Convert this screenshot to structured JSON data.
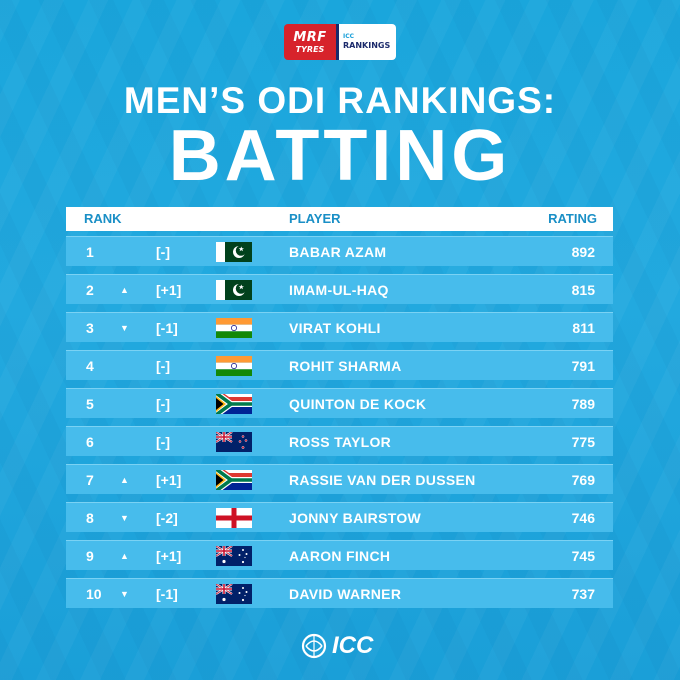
{
  "sponsor": {
    "brand": "MRF",
    "brand_sub": "TYRES",
    "partner_top": "ICC",
    "partner_bottom": "RANKINGS"
  },
  "title_line1": "MEN’S ODI RANKINGS:",
  "title_line2": "BATTING",
  "headers": {
    "rank": "RANK",
    "player": "PLAYER",
    "rating": "RATING"
  },
  "rows": [
    {
      "rank": "1",
      "arrow": "",
      "move": "[-]",
      "flag": "pakistan-flag",
      "player": "BABAR AZAM",
      "rating": "892"
    },
    {
      "rank": "2",
      "arrow": "▲",
      "move": "[+1]",
      "flag": "pakistan-flag",
      "player": "IMAM-UL-HAQ",
      "rating": "815"
    },
    {
      "rank": "3",
      "arrow": "▼",
      "move": "[-1]",
      "flag": "india-flag",
      "player": "VIRAT KOHLI",
      "rating": "811"
    },
    {
      "rank": "4",
      "arrow": "",
      "move": "[-]",
      "flag": "india-flag",
      "player": "ROHIT SHARMA",
      "rating": "791"
    },
    {
      "rank": "5",
      "arrow": "",
      "move": "[-]",
      "flag": "south-africa-flag",
      "player": "QUINTON DE KOCK",
      "rating": "789"
    },
    {
      "rank": "6",
      "arrow": "",
      "move": "[-]",
      "flag": "new-zealand-flag",
      "player": "ROSS TAYLOR",
      "rating": "775"
    },
    {
      "rank": "7",
      "arrow": "▲",
      "move": "[+1]",
      "flag": "south-africa-flag",
      "player": "RASSIE VAN DER DUSSEN",
      "rating": "769"
    },
    {
      "rank": "8",
      "arrow": "▼",
      "move": "[-2]",
      "flag": "england-flag",
      "player": "JONNY BAIRSTOW",
      "rating": "746"
    },
    {
      "rank": "9",
      "arrow": "▲",
      "move": "[+1]",
      "flag": "australia-flag",
      "player": "AARON FINCH",
      "rating": "745"
    },
    {
      "rank": "10",
      "arrow": "▼",
      "move": "[-1]",
      "flag": "australia-flag",
      "player": "DAVID WARNER",
      "rating": "737"
    }
  ],
  "footer": {
    "logo_text": "ICC"
  },
  "colors": {
    "background": "#1ea6dc",
    "row": "#47bcec",
    "header_text": "#1a8fc6",
    "mrf_red": "#d7232b"
  }
}
